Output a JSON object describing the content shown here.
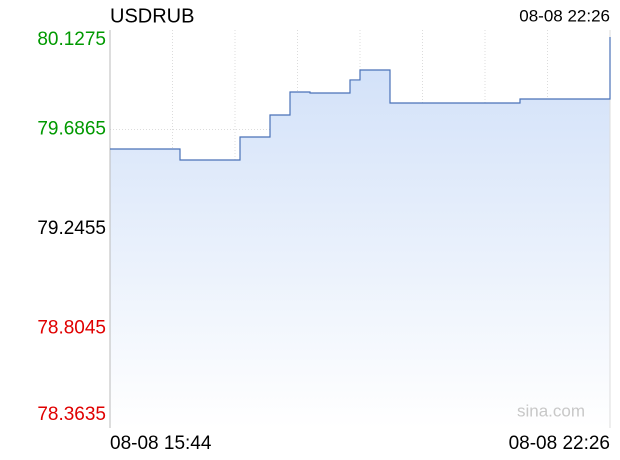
{
  "chart_data": {
    "type": "line",
    "title": "USDRUB",
    "timestamp": "08-08 22:26",
    "watermark": "sina.com",
    "categories": [
      "08-08 15:44",
      null,
      null,
      null,
      null,
      null,
      null,
      null,
      null,
      null,
      null,
      null,
      null,
      null,
      null,
      null,
      null,
      null,
      null,
      null,
      null,
      null,
      null,
      null,
      null,
      null,
      null,
      null,
      null,
      null,
      null,
      null,
      null,
      null,
      null,
      null,
      null,
      null,
      null,
      null,
      null,
      null,
      null,
      null,
      null,
      null,
      null,
      null,
      null,
      null,
      "08-08 22:26"
    ],
    "series": [
      {
        "name": "USDRUB",
        "color": "#4a72b8",
        "values": [
          79.6001,
          79.6001,
          79.6001,
          79.6001,
          79.6001,
          79.6001,
          79.6001,
          79.5514,
          79.5514,
          79.5514,
          79.5514,
          79.5514,
          79.5514,
          79.6533,
          79.6533,
          79.6533,
          79.7508,
          79.7508,
          79.8527,
          79.8527,
          79.8483,
          79.8483,
          79.8483,
          79.8483,
          79.9062,
          79.9502,
          79.9502,
          79.9502,
          79.804,
          79.804,
          79.804,
          79.804,
          79.804,
          79.804,
          79.804,
          79.804,
          79.804,
          79.804,
          79.804,
          79.804,
          79.804,
          79.8217,
          79.8217,
          79.8217,
          79.8217,
          79.8217,
          79.8217,
          79.8217,
          79.8217,
          79.8217,
          80.0965
        ]
      }
    ],
    "ylim": [
      78.3635,
      80.1275
    ],
    "yticks": [
      78.3635,
      78.8045,
      79.2455,
      79.6865,
      80.1275
    ],
    "ytick_colors": [
      "#e00000",
      "#e00000",
      "#000000",
      "#009900",
      "#009900"
    ],
    "grid": true
  }
}
